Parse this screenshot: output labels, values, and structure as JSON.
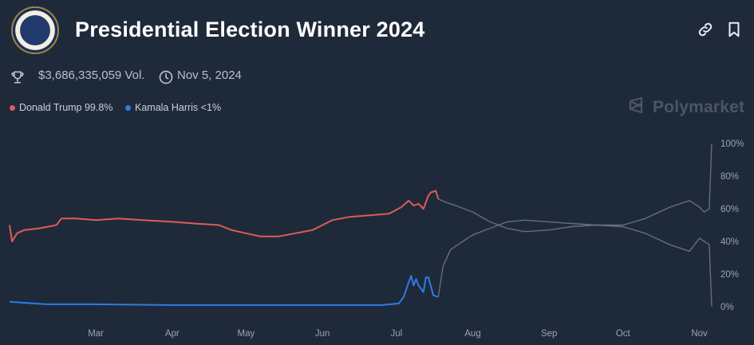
{
  "header": {
    "title": "Presidential Election Winner 2024",
    "seal_icon": "presidential-seal-icon",
    "link_icon": "link-icon",
    "bookmark_icon": "bookmark-icon"
  },
  "meta": {
    "volume": "$3,686,335,059 Vol.",
    "date": "Nov 5, 2024",
    "volume_icon": "trophy-icon",
    "date_icon": "clock-icon"
  },
  "watermark": {
    "text": "Polymarket",
    "icon": "polymarket-logo-icon"
  },
  "colors": {
    "background": "#1e2a3a",
    "trump": "#e05a5a",
    "harris": "#2f7be5",
    "faded": "#6b7585",
    "axis_text": "#9aa4b2"
  },
  "chart_data": {
    "type": "line",
    "title": "Presidential Election Winner 2024",
    "xlabel": "",
    "ylabel": "",
    "x_tick_labels": [
      "Mar",
      "Apr",
      "May",
      "Jun",
      "Jul",
      "Aug",
      "Sep",
      "Oct",
      "Nov"
    ],
    "y_tick_labels": [
      "100%",
      "80%",
      "60%",
      "40%",
      "20%",
      "0%"
    ],
    "ylim": [
      0,
      100
    ],
    "grid": false,
    "legend_position": "top-left",
    "legend": [
      {
        "label": "Donald Trump 99.8%",
        "color": "#e05a5a"
      },
      {
        "label": "Kamala Harris <1%",
        "color": "#2f7be5"
      }
    ],
    "series": [
      {
        "name": "Donald Trump",
        "color": "#e05a5a",
        "style": "solid",
        "points": [
          [
            "2024-01-26",
            50
          ],
          [
            "2024-01-27",
            40
          ],
          [
            "2024-01-29",
            45
          ],
          [
            "2024-02-01",
            47
          ],
          [
            "2024-02-07",
            48
          ],
          [
            "2024-02-14",
            50
          ],
          [
            "2024-02-16",
            54
          ],
          [
            "2024-02-22",
            54
          ],
          [
            "2024-03-01",
            53
          ],
          [
            "2024-03-10",
            54
          ],
          [
            "2024-03-20",
            53
          ],
          [
            "2024-04-01",
            52
          ],
          [
            "2024-04-10",
            51
          ],
          [
            "2024-04-20",
            50
          ],
          [
            "2024-04-25",
            47
          ],
          [
            "2024-05-01",
            45
          ],
          [
            "2024-05-07",
            43
          ],
          [
            "2024-05-14",
            43
          ],
          [
            "2024-05-21",
            45
          ],
          [
            "2024-05-28",
            47
          ],
          [
            "2024-06-01",
            50
          ],
          [
            "2024-06-05",
            53
          ],
          [
            "2024-06-12",
            55
          ],
          [
            "2024-06-20",
            56
          ],
          [
            "2024-06-28",
            57
          ],
          [
            "2024-07-03",
            61
          ],
          [
            "2024-07-06",
            65
          ],
          [
            "2024-07-08",
            62
          ],
          [
            "2024-07-10",
            63
          ],
          [
            "2024-07-12",
            60
          ],
          [
            "2024-07-14",
            68
          ],
          [
            "2024-07-15",
            70
          ],
          [
            "2024-07-17",
            71
          ],
          [
            "2024-07-18",
            66
          ]
        ]
      },
      {
        "name": "Kamala Harris",
        "color": "#2f7be5",
        "style": "solid",
        "points": [
          [
            "2024-01-26",
            3
          ],
          [
            "2024-02-10",
            1.5
          ],
          [
            "2024-03-01",
            1.5
          ],
          [
            "2024-04-01",
            1
          ],
          [
            "2024-05-01",
            1
          ],
          [
            "2024-06-01",
            1
          ],
          [
            "2024-06-25",
            1
          ],
          [
            "2024-07-02",
            2
          ],
          [
            "2024-07-04",
            6
          ],
          [
            "2024-07-06",
            15
          ],
          [
            "2024-07-07",
            19
          ],
          [
            "2024-07-08",
            13
          ],
          [
            "2024-07-09",
            17
          ],
          [
            "2024-07-10",
            13
          ],
          [
            "2024-07-12",
            9
          ],
          [
            "2024-07-13",
            18
          ],
          [
            "2024-07-14",
            18
          ],
          [
            "2024-07-16",
            7
          ],
          [
            "2024-07-18",
            6
          ]
        ]
      },
      {
        "name": "Donald Trump",
        "color": "#6b7585",
        "style": "faded",
        "points": [
          [
            "2024-07-18",
            66
          ],
          [
            "2024-07-21",
            64
          ],
          [
            "2024-07-25",
            62
          ],
          [
            "2024-08-01",
            58
          ],
          [
            "2024-08-08",
            52
          ],
          [
            "2024-08-15",
            48
          ],
          [
            "2024-08-22",
            46
          ],
          [
            "2024-09-01",
            47
          ],
          [
            "2024-09-10",
            49
          ],
          [
            "2024-09-20",
            50
          ],
          [
            "2024-10-01",
            50
          ],
          [
            "2024-10-10",
            54
          ],
          [
            "2024-10-20",
            61
          ],
          [
            "2024-10-28",
            65
          ],
          [
            "2024-11-01",
            61
          ],
          [
            "2024-11-03",
            58
          ],
          [
            "2024-11-05",
            60
          ],
          [
            "2024-11-06",
            99.8
          ]
        ]
      },
      {
        "name": "Kamala Harris",
        "color": "#6b7585",
        "style": "faded",
        "points": [
          [
            "2024-07-18",
            6
          ],
          [
            "2024-07-20",
            25
          ],
          [
            "2024-07-23",
            35
          ],
          [
            "2024-07-28",
            40
          ],
          [
            "2024-08-01",
            44
          ],
          [
            "2024-08-08",
            48
          ],
          [
            "2024-08-15",
            52
          ],
          [
            "2024-08-22",
            53
          ],
          [
            "2024-09-01",
            52
          ],
          [
            "2024-09-10",
            51
          ],
          [
            "2024-09-20",
            50
          ],
          [
            "2024-10-01",
            49
          ],
          [
            "2024-10-10",
            45
          ],
          [
            "2024-10-20",
            38
          ],
          [
            "2024-10-28",
            34
          ],
          [
            "2024-11-01",
            42
          ],
          [
            "2024-11-03",
            40
          ],
          [
            "2024-11-05",
            38
          ],
          [
            "2024-11-06",
            0.2
          ]
        ]
      }
    ]
  }
}
